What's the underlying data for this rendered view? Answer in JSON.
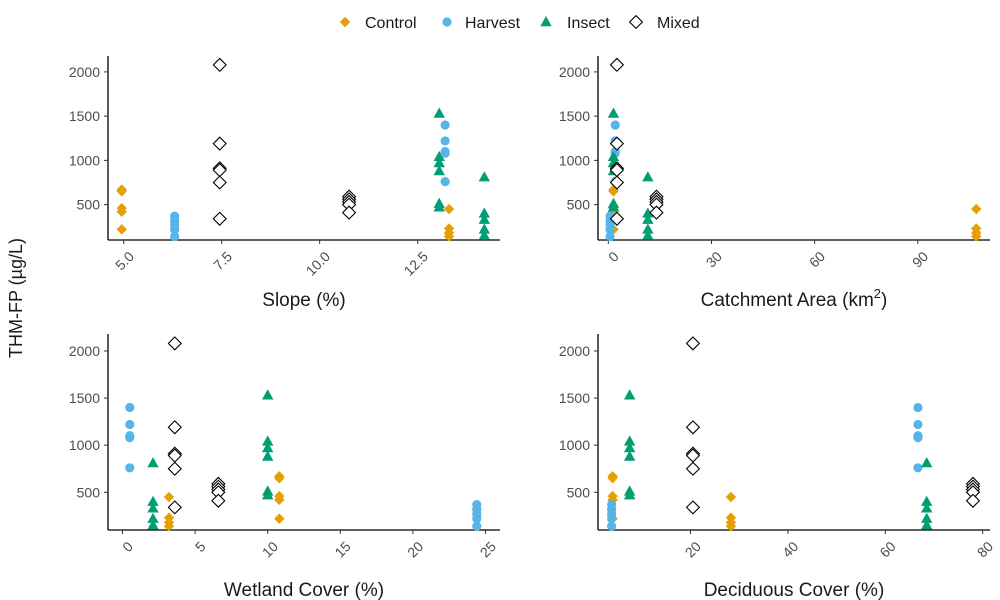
{
  "legend": {
    "position": "top-center",
    "items": [
      {
        "label": "Control",
        "color": "#E69F00",
        "shape": "diamond-filled"
      },
      {
        "label": "Harvest",
        "color": "#56B4E9",
        "shape": "circle-filled"
      },
      {
        "label": "Insect",
        "color": "#009E73",
        "shape": "triangle-filled"
      },
      {
        "label": "Mixed",
        "color": "#000000",
        "shape": "diamond-open"
      }
    ]
  },
  "shared_ylabel": "THM-FP (µg/L)",
  "chart_data": [
    {
      "type": "scatter",
      "xlabel": "Slope (%)",
      "xlabel_sup": "",
      "xlim": [
        4.6,
        14.6
      ],
      "xticks": [
        5,
        7.5,
        10,
        12.5
      ],
      "xtick_labels": [
        "5.0",
        "7.5",
        "10.0",
        "12.5"
      ],
      "ylim": [
        100,
        2180
      ],
      "yticks": [
        500,
        1000,
        1500,
        2000
      ],
      "ytick_labels": [
        "500",
        "1000",
        "1500",
        "2000"
      ],
      "series": [
        {
          "name": "Control",
          "points": [
            [
              4.95,
              650
            ],
            [
              4.95,
              670
            ],
            [
              4.95,
              460
            ],
            [
              4.95,
              420
            ],
            [
              4.95,
              220
            ],
            [
              13.3,
              450
            ],
            [
              13.3,
              230
            ],
            [
              13.3,
              180
            ],
            [
              13.3,
              140
            ]
          ]
        },
        {
          "name": "Harvest",
          "points": [
            [
              6.3,
              370
            ],
            [
              6.3,
              320
            ],
            [
              6.3,
              270
            ],
            [
              6.3,
              220
            ],
            [
              6.3,
              140
            ]
          ]
        },
        {
          "name": "Insect",
          "points": [
            [
              13.05,
              1530
            ],
            [
              13.05,
              1040
            ],
            [
              13.05,
              970
            ],
            [
              13.05,
              880
            ],
            [
              13.05,
              510
            ],
            [
              13.05,
              470
            ],
            [
              14.2,
              810
            ],
            [
              14.2,
              400
            ],
            [
              14.2,
              330
            ],
            [
              14.2,
              220
            ],
            [
              14.2,
              150
            ]
          ]
        },
        {
          "name": "Harvest",
          "points": [
            [
              13.2,
              1400
            ],
            [
              13.2,
              1220
            ],
            [
              13.2,
              1100
            ],
            [
              13.2,
              1080
            ],
            [
              13.2,
              760
            ]
          ]
        },
        {
          "name": "Mixed",
          "points": [
            [
              7.45,
              2080
            ],
            [
              7.45,
              1190
            ],
            [
              7.45,
              910
            ],
            [
              7.45,
              890
            ],
            [
              7.45,
              750
            ],
            [
              7.45,
              340
            ],
            [
              10.75,
              590
            ],
            [
              10.75,
              560
            ],
            [
              10.75,
              530
            ],
            [
              10.75,
              500
            ],
            [
              10.75,
              410
            ]
          ]
        }
      ]
    },
    {
      "type": "scatter",
      "xlabel": "Catchment Area (km",
      "xlabel_sup": "2",
      "xlabel_suffix": ")",
      "xlim": [
        -3,
        111
      ],
      "xticks": [
        0,
        30,
        60,
        90
      ],
      "xtick_labels": [
        "0",
        "30",
        "60",
        "90"
      ],
      "ylim": [
        100,
        2180
      ],
      "yticks": [
        500,
        1000,
        1500,
        2000
      ],
      "ytick_labels": [
        "500",
        "1000",
        "1500",
        "2000"
      ],
      "series": [
        {
          "name": "Control",
          "points": [
            [
              1.5,
              650
            ],
            [
              1.5,
              670
            ],
            [
              1.5,
              460
            ],
            [
              1.5,
              420
            ],
            [
              1.5,
              220
            ],
            [
              107,
              450
            ],
            [
              107,
              230
            ],
            [
              107,
              180
            ],
            [
              107,
              140
            ]
          ]
        },
        {
          "name": "Harvest",
          "points": [
            [
              0.5,
              370
            ],
            [
              0.5,
              320
            ],
            [
              0.5,
              270
            ],
            [
              0.5,
              220
            ],
            [
              0.5,
              140
            ],
            [
              2,
              1400
            ],
            [
              2,
              1220
            ],
            [
              2,
              1100
            ],
            [
              2,
              1080
            ],
            [
              2,
              760
            ]
          ]
        },
        {
          "name": "Insect",
          "points": [
            [
              1.5,
              1530
            ],
            [
              1.5,
              1040
            ],
            [
              1.5,
              970
            ],
            [
              1.5,
              880
            ],
            [
              1.5,
              510
            ],
            [
              1.5,
              470
            ],
            [
              11.5,
              810
            ],
            [
              11.5,
              400
            ],
            [
              11.5,
              330
            ],
            [
              11.5,
              220
            ],
            [
              11.5,
              150
            ]
          ]
        },
        {
          "name": "Mixed",
          "points": [
            [
              2.5,
              2080
            ],
            [
              2.5,
              1190
            ],
            [
              2.5,
              910
            ],
            [
              2.5,
              890
            ],
            [
              2.5,
              750
            ],
            [
              2.5,
              340
            ],
            [
              14,
              590
            ],
            [
              14,
              560
            ],
            [
              14,
              530
            ],
            [
              14,
              500
            ],
            [
              14,
              410
            ]
          ]
        }
      ]
    },
    {
      "type": "scatter",
      "xlabel": "Wetland Cover (%)",
      "xlabel_sup": "",
      "xlim": [
        -1,
        26
      ],
      "xticks": [
        0,
        5,
        10,
        15,
        20,
        25
      ],
      "xtick_labels": [
        "0",
        "5",
        "10",
        "15",
        "20",
        "25"
      ],
      "ylim": [
        100,
        2180
      ],
      "yticks": [
        500,
        1000,
        1500,
        2000
      ],
      "ytick_labels": [
        "500",
        "1000",
        "1500",
        "2000"
      ],
      "series": [
        {
          "name": "Control",
          "points": [
            [
              10.8,
              650
            ],
            [
              10.8,
              670
            ],
            [
              10.8,
              460
            ],
            [
              10.8,
              420
            ],
            [
              10.8,
              220
            ],
            [
              3.2,
              450
            ],
            [
              3.2,
              230
            ],
            [
              3.2,
              180
            ],
            [
              3.2,
              140
            ]
          ]
        },
        {
          "name": "Harvest",
          "points": [
            [
              0.5,
              1400
            ],
            [
              0.5,
              1220
            ],
            [
              0.5,
              1100
            ],
            [
              0.5,
              1080
            ],
            [
              0.5,
              760
            ],
            [
              24.4,
              370
            ],
            [
              24.4,
              320
            ],
            [
              24.4,
              270
            ],
            [
              24.4,
              220
            ],
            [
              24.4,
              140
            ]
          ]
        },
        {
          "name": "Insect",
          "points": [
            [
              10,
              1530
            ],
            [
              10,
              1040
            ],
            [
              10,
              970
            ],
            [
              10,
              880
            ],
            [
              10,
              510
            ],
            [
              10,
              470
            ],
            [
              2.1,
              810
            ],
            [
              2.1,
              400
            ],
            [
              2.1,
              330
            ],
            [
              2.1,
              220
            ],
            [
              2.1,
              150
            ]
          ]
        },
        {
          "name": "Mixed",
          "points": [
            [
              3.6,
              2080
            ],
            [
              3.6,
              1190
            ],
            [
              3.6,
              910
            ],
            [
              3.6,
              890
            ],
            [
              3.6,
              750
            ],
            [
              3.6,
              340
            ],
            [
              6.6,
              590
            ],
            [
              6.6,
              560
            ],
            [
              6.6,
              530
            ],
            [
              6.6,
              500
            ],
            [
              6.6,
              410
            ]
          ]
        }
      ]
    },
    {
      "type": "scatter",
      "xlabel": "Deciduous Cover (%)",
      "xlabel_sup": "",
      "xlim": [
        1,
        81.5
      ],
      "xticks": [
        20,
        40,
        60,
        80
      ],
      "xtick_labels": [
        "20",
        "40",
        "60",
        "80"
      ],
      "ylim": [
        100,
        2180
      ],
      "yticks": [
        500,
        1000,
        1500,
        2000
      ],
      "ytick_labels": [
        "500",
        "1000",
        "1500",
        "2000"
      ],
      "series": [
        {
          "name": "Control",
          "points": [
            [
              4,
              650
            ],
            [
              4,
              670
            ],
            [
              4,
              460
            ],
            [
              4,
              420
            ],
            [
              4,
              220
            ],
            [
              28.3,
              450
            ],
            [
              28.3,
              230
            ],
            [
              28.3,
              180
            ],
            [
              28.3,
              140
            ]
          ]
        },
        {
          "name": "Harvest",
          "points": [
            [
              3.8,
              370
            ],
            [
              3.8,
              320
            ],
            [
              3.8,
              270
            ],
            [
              3.8,
              220
            ],
            [
              3.8,
              140
            ],
            [
              66.7,
              1400
            ],
            [
              66.7,
              1220
            ],
            [
              66.7,
              1100
            ],
            [
              66.7,
              1080
            ],
            [
              66.7,
              760
            ]
          ]
        },
        {
          "name": "Insect",
          "points": [
            [
              7.5,
              1530
            ],
            [
              7.5,
              1040
            ],
            [
              7.5,
              970
            ],
            [
              7.5,
              880
            ],
            [
              7.5,
              510
            ],
            [
              7.5,
              470
            ],
            [
              68.5,
              810
            ],
            [
              68.5,
              400
            ],
            [
              68.5,
              330
            ],
            [
              68.5,
              220
            ],
            [
              68.5,
              150
            ]
          ]
        },
        {
          "name": "Mixed",
          "points": [
            [
              20.5,
              2080
            ],
            [
              20.5,
              1190
            ],
            [
              20.5,
              910
            ],
            [
              20.5,
              890
            ],
            [
              20.5,
              750
            ],
            [
              20.5,
              340
            ],
            [
              78,
              590
            ],
            [
              78,
              560
            ],
            [
              78,
              530
            ],
            [
              78,
              500
            ],
            [
              78,
              410
            ]
          ]
        }
      ]
    }
  ]
}
